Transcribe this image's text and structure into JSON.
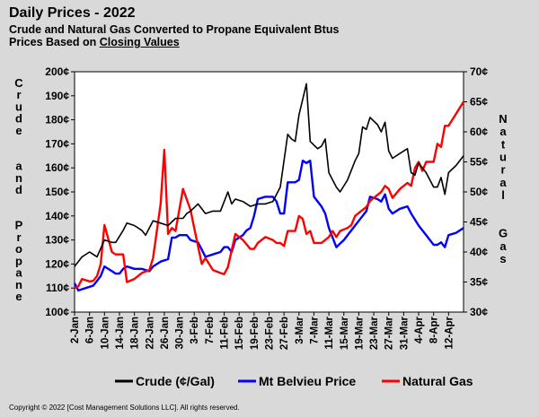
{
  "header": {
    "title": "Daily Prices - 2022",
    "subtitle": "Crude and Natural Gas Converted to Propane Equivalent Btus",
    "subtitle2_prefix": "Prices Based on ",
    "subtitle2_link": "Closing Values"
  },
  "footer": {
    "copyright": "Copyright  © 2022  [Cost Management  Solutions LLC].  All rights reserved."
  },
  "colors": {
    "background": "#d9d9d9",
    "plot_area": "#ffffff",
    "crude": "#000000",
    "belvieu": "#0000ff",
    "natgas": "#ff0000"
  },
  "chart_data": {
    "type": "line",
    "left_axis_label": "Crude and Propane",
    "right_axis_label": "Natural Gas",
    "ylim_left": [
      100,
      200
    ],
    "ylim_right": [
      30,
      70
    ],
    "left_ticks": [
      "100¢",
      "110¢",
      "120¢",
      "130¢",
      "140¢",
      "150¢",
      "160¢",
      "170¢",
      "180¢",
      "190¢",
      "200¢"
    ],
    "right_ticks": [
      "30¢",
      "35¢",
      "40¢",
      "45¢",
      "50¢",
      "55¢",
      "60¢",
      "65¢",
      "70¢"
    ],
    "x_start": "2022-01-02",
    "x_end": "2022-04-16",
    "x_ticks": [
      "2-Jan",
      "6-Jan",
      "10-Jan",
      "14-Jan",
      "18-Jan",
      "22-Jan",
      "26-Jan",
      "30-Jan",
      "3-Feb",
      "7-Feb",
      "11-Feb",
      "15-Feb",
      "19-Feb",
      "23-Feb",
      "27-Feb",
      "3-Mar",
      "7-Mar",
      "11-Mar",
      "15-Mar",
      "19-Mar",
      "23-Mar",
      "27-Mar",
      "31-Mar",
      "4-Apr",
      "8-Apr",
      "12-Apr"
    ],
    "grid": false,
    "legend_position": "bottom",
    "series": [
      {
        "name": "Crude (¢/Gal)",
        "axis": "left",
        "points": [
          [
            "2022-01-02",
            119
          ],
          [
            "2022-01-04",
            123
          ],
          [
            "2022-01-06",
            125
          ],
          [
            "2022-01-07",
            124
          ],
          [
            "2022-01-08",
            123
          ],
          [
            "2022-01-10",
            130
          ],
          [
            "2022-01-12",
            129
          ],
          [
            "2022-01-13",
            129
          ],
          [
            "2022-01-15",
            134
          ],
          [
            "2022-01-16",
            137
          ],
          [
            "2022-01-18",
            136
          ],
          [
            "2022-01-20",
            134
          ],
          [
            "2022-01-21",
            132
          ],
          [
            "2022-01-23",
            138
          ],
          [
            "2022-01-25",
            137
          ],
          [
            "2022-01-27",
            136
          ],
          [
            "2022-01-29",
            139
          ],
          [
            "2022-01-31",
            139
          ],
          [
            "2022-02-01",
            141
          ],
          [
            "2022-02-02",
            142
          ],
          [
            "2022-02-04",
            145
          ],
          [
            "2022-02-05",
            143
          ],
          [
            "2022-02-06",
            141
          ],
          [
            "2022-02-08",
            142
          ],
          [
            "2022-02-10",
            142
          ],
          [
            "2022-02-12",
            150
          ],
          [
            "2022-02-13",
            145
          ],
          [
            "2022-02-14",
            147
          ],
          [
            "2022-02-16",
            146
          ],
          [
            "2022-02-18",
            144
          ],
          [
            "2022-02-20",
            145
          ],
          [
            "2022-02-22",
            145
          ],
          [
            "2022-02-24",
            146
          ],
          [
            "2022-02-26",
            152
          ],
          [
            "2022-02-28",
            174
          ],
          [
            "2022-03-01",
            172
          ],
          [
            "2022-03-02",
            171
          ],
          [
            "2022-03-03",
            182
          ],
          [
            "2022-03-05",
            195
          ],
          [
            "2022-03-06",
            171
          ],
          [
            "2022-03-08",
            168
          ],
          [
            "2022-03-09",
            169
          ],
          [
            "2022-03-10",
            172
          ],
          [
            "2022-03-11",
            158
          ],
          [
            "2022-03-13",
            152
          ],
          [
            "2022-03-14",
            150
          ],
          [
            "2022-03-16",
            155
          ],
          [
            "2022-03-18",
            163
          ],
          [
            "2022-03-19",
            166
          ],
          [
            "2022-03-20",
            177
          ],
          [
            "2022-03-21",
            176
          ],
          [
            "2022-03-22",
            181
          ],
          [
            "2022-03-24",
            178
          ],
          [
            "2022-03-25",
            175
          ],
          [
            "2022-03-26",
            179
          ],
          [
            "2022-03-27",
            167
          ],
          [
            "2022-03-28",
            164
          ],
          [
            "2022-03-30",
            166
          ],
          [
            "2022-04-01",
            168
          ],
          [
            "2022-04-02",
            158
          ],
          [
            "2022-04-03",
            157
          ],
          [
            "2022-04-04",
            162
          ],
          [
            "2022-04-06",
            158
          ],
          [
            "2022-04-08",
            152
          ],
          [
            "2022-04-09",
            152
          ],
          [
            "2022-04-10",
            156
          ],
          [
            "2022-04-11",
            149
          ],
          [
            "2022-04-12",
            158
          ],
          [
            "2022-04-14",
            161
          ],
          [
            "2022-04-16",
            165
          ]
        ]
      },
      {
        "name": "Mt Belvieu Price",
        "axis": "left",
        "points": [
          [
            "2022-01-02",
            112
          ],
          [
            "2022-01-03",
            109
          ],
          [
            "2022-01-05",
            110
          ],
          [
            "2022-01-07",
            111
          ],
          [
            "2022-01-08",
            113
          ],
          [
            "2022-01-09",
            115
          ],
          [
            "2022-01-10",
            119
          ],
          [
            "2022-01-12",
            117
          ],
          [
            "2022-01-13",
            116
          ],
          [
            "2022-01-14",
            116
          ],
          [
            "2022-01-15",
            118
          ],
          [
            "2022-01-16",
            119
          ],
          [
            "2022-01-18",
            118
          ],
          [
            "2022-01-20",
            118
          ],
          [
            "2022-01-22",
            117
          ],
          [
            "2022-01-23",
            119
          ],
          [
            "2022-01-25",
            121
          ],
          [
            "2022-01-27",
            122
          ],
          [
            "2022-01-28",
            131
          ],
          [
            "2022-01-29",
            131
          ],
          [
            "2022-01-30",
            132
          ],
          [
            "2022-02-01",
            132
          ],
          [
            "2022-02-02",
            130
          ],
          [
            "2022-02-04",
            129
          ],
          [
            "2022-02-05",
            126
          ],
          [
            "2022-02-06",
            123
          ],
          [
            "2022-02-08",
            124
          ],
          [
            "2022-02-10",
            125
          ],
          [
            "2022-02-11",
            127
          ],
          [
            "2022-02-12",
            127
          ],
          [
            "2022-02-13",
            125
          ],
          [
            "2022-02-14",
            130
          ],
          [
            "2022-02-16",
            132
          ],
          [
            "2022-02-17",
            134
          ],
          [
            "2022-02-18",
            135
          ],
          [
            "2022-02-19",
            140
          ],
          [
            "2022-02-20",
            147
          ],
          [
            "2022-02-22",
            148
          ],
          [
            "2022-02-24",
            148
          ],
          [
            "2022-02-25",
            146
          ],
          [
            "2022-02-26",
            141
          ],
          [
            "2022-02-27",
            141
          ],
          [
            "2022-02-28",
            154
          ],
          [
            "2022-03-02",
            154
          ],
          [
            "2022-03-03",
            155
          ],
          [
            "2022-03-04",
            163
          ],
          [
            "2022-03-05",
            162
          ],
          [
            "2022-03-06",
            163
          ],
          [
            "2022-03-07",
            148
          ],
          [
            "2022-03-09",
            144
          ],
          [
            "2022-03-10",
            141
          ],
          [
            "2022-03-11",
            135
          ],
          [
            "2022-03-13",
            127
          ],
          [
            "2022-03-15",
            130
          ],
          [
            "2022-03-17",
            134
          ],
          [
            "2022-03-19",
            138
          ],
          [
            "2022-03-20",
            140
          ],
          [
            "2022-03-21",
            142
          ],
          [
            "2022-03-22",
            148
          ],
          [
            "2022-03-24",
            147
          ],
          [
            "2022-03-25",
            146
          ],
          [
            "2022-03-26",
            149
          ],
          [
            "2022-03-27",
            143
          ],
          [
            "2022-03-28",
            141
          ],
          [
            "2022-03-30",
            143
          ],
          [
            "2022-04-01",
            144
          ],
          [
            "2022-04-02",
            141
          ],
          [
            "2022-04-04",
            136
          ],
          [
            "2022-04-06",
            132
          ],
          [
            "2022-04-08",
            128
          ],
          [
            "2022-04-09",
            128
          ],
          [
            "2022-04-10",
            129
          ],
          [
            "2022-04-11",
            127
          ],
          [
            "2022-04-12",
            132
          ],
          [
            "2022-04-14",
            133
          ],
          [
            "2022-04-16",
            135
          ]
        ]
      },
      {
        "name": "Natural Gas",
        "axis": "right",
        "points": [
          [
            "2022-01-02",
            34.0
          ],
          [
            "2022-01-03",
            34.3
          ],
          [
            "2022-01-04",
            35.5
          ],
          [
            "2022-01-06",
            35.1
          ],
          [
            "2022-01-07",
            35.2
          ],
          [
            "2022-01-08",
            36.0
          ],
          [
            "2022-01-09",
            38.0
          ],
          [
            "2022-01-10",
            44.5
          ],
          [
            "2022-01-12",
            40.0
          ],
          [
            "2022-01-13",
            39.6
          ],
          [
            "2022-01-14",
            39.6
          ],
          [
            "2022-01-15",
            39.6
          ],
          [
            "2022-01-16",
            35.0
          ],
          [
            "2022-01-18",
            35.5
          ],
          [
            "2022-01-20",
            36.5
          ],
          [
            "2022-01-22",
            37.0
          ],
          [
            "2022-01-23",
            39.0
          ],
          [
            "2022-01-25",
            48.0
          ],
          [
            "2022-01-26",
            57.0
          ],
          [
            "2022-01-27",
            43.0
          ],
          [
            "2022-01-28",
            44.0
          ],
          [
            "2022-01-29",
            43.5
          ],
          [
            "2022-01-31",
            50.5
          ],
          [
            "2022-02-02",
            47.0
          ],
          [
            "2022-02-03",
            44.0
          ],
          [
            "2022-02-05",
            38.0
          ],
          [
            "2022-02-06",
            39.0
          ],
          [
            "2022-02-08",
            37.0
          ],
          [
            "2022-02-10",
            36.5
          ],
          [
            "2022-02-11",
            36.3
          ],
          [
            "2022-02-12",
            37.5
          ],
          [
            "2022-02-14",
            43.0
          ],
          [
            "2022-02-16",
            42.0
          ],
          [
            "2022-02-18",
            40.5
          ],
          [
            "2022-02-19",
            40.5
          ],
          [
            "2022-02-20",
            41.5
          ],
          [
            "2022-02-22",
            42.5
          ],
          [
            "2022-02-24",
            42.0
          ],
          [
            "2022-02-25",
            41.5
          ],
          [
            "2022-02-26",
            41.5
          ],
          [
            "2022-02-27",
            41.0
          ],
          [
            "2022-02-28",
            43.5
          ],
          [
            "2022-03-01",
            43.5
          ],
          [
            "2022-03-02",
            43.5
          ],
          [
            "2022-03-03",
            46.0
          ],
          [
            "2022-03-04",
            45.5
          ],
          [
            "2022-03-05",
            43.0
          ],
          [
            "2022-03-06",
            43.5
          ],
          [
            "2022-03-07",
            41.5
          ],
          [
            "2022-03-09",
            41.5
          ],
          [
            "2022-03-11",
            42.5
          ],
          [
            "2022-03-12",
            43.5
          ],
          [
            "2022-03-13",
            42.5
          ],
          [
            "2022-03-14",
            43.5
          ],
          [
            "2022-03-16",
            44.0
          ],
          [
            "2022-03-17",
            44.5
          ],
          [
            "2022-03-18",
            46.0
          ],
          [
            "2022-03-20",
            47.0
          ],
          [
            "2022-03-21",
            47.5
          ],
          [
            "2022-03-22",
            48.5
          ],
          [
            "2022-03-24",
            49.5
          ],
          [
            "2022-03-25",
            50.0
          ],
          [
            "2022-03-26",
            51.0
          ],
          [
            "2022-03-27",
            50.5
          ],
          [
            "2022-03-28",
            49.0
          ],
          [
            "2022-03-30",
            50.5
          ],
          [
            "2022-04-01",
            51.5
          ],
          [
            "2022-04-02",
            51.0
          ],
          [
            "2022-04-03",
            54.0
          ],
          [
            "2022-04-04",
            55.0
          ],
          [
            "2022-04-05",
            53.5
          ],
          [
            "2022-04-06",
            55.0
          ],
          [
            "2022-04-08",
            55.0
          ],
          [
            "2022-04-09",
            58.0
          ],
          [
            "2022-04-10",
            57.5
          ],
          [
            "2022-04-11",
            61.0
          ],
          [
            "2022-04-12",
            61.0
          ],
          [
            "2022-04-14",
            63.0
          ],
          [
            "2022-04-16",
            65.0
          ]
        ]
      }
    ]
  }
}
